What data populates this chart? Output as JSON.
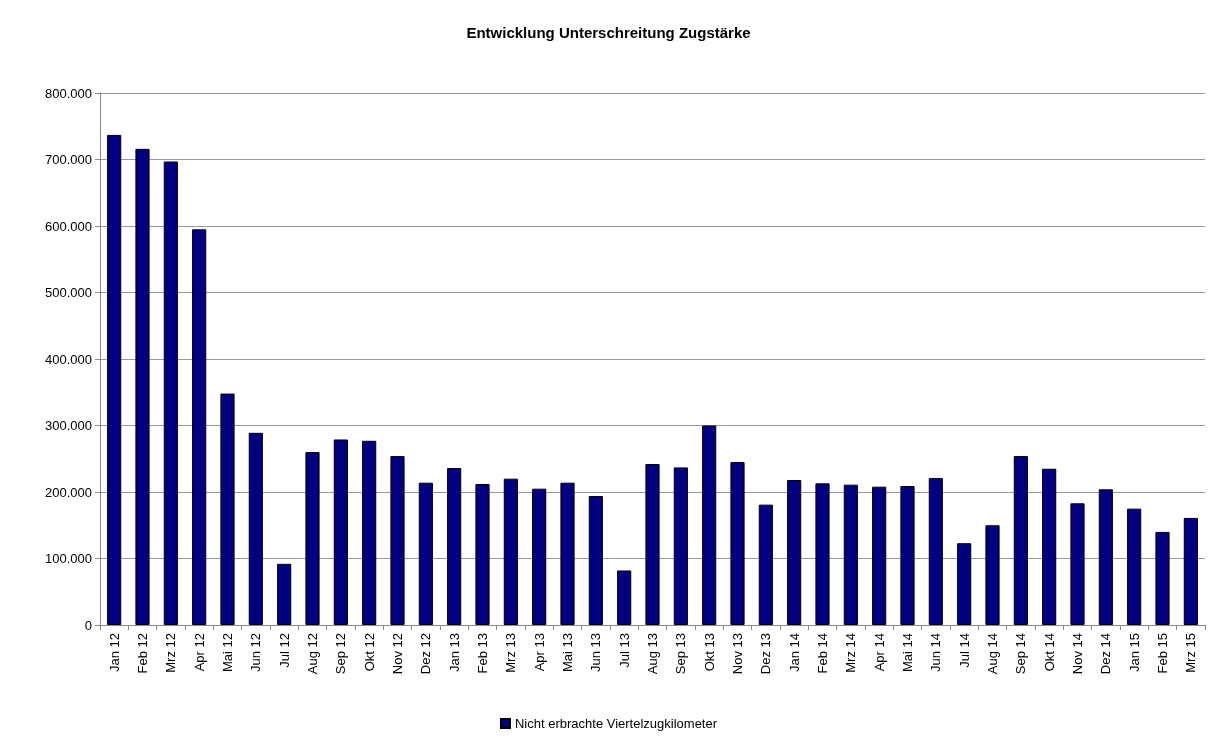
{
  "chart_data": {
    "type": "bar",
    "title": "Entwicklung Unterschreitung Zugstärke",
    "categories": [
      "Jan 12",
      "Feb 12",
      "Mrz 12",
      "Apr 12",
      "Mai 12",
      "Jun 12",
      "Jul 12",
      "Aug 12",
      "Sep 12",
      "Okt 12",
      "Nov 12",
      "Dez 12",
      "Jan 13",
      "Feb 13",
      "Mrz 13",
      "Apr 13",
      "Mai 13",
      "Jun 13",
      "Jul 13",
      "Aug 13",
      "Sep 13",
      "Okt 13",
      "Nov 13",
      "Dez 13",
      "Jan 14",
      "Feb 14",
      "Mrz 14",
      "Apr 14",
      "Mai 14",
      "Jun 14",
      "Jul 14",
      "Aug 14",
      "Sep 14",
      "Okt 14",
      "Nov 14",
      "Dez 14",
      "Jan 15",
      "Feb 15",
      "Mrz 15"
    ],
    "series": [
      {
        "name": "Nicht erbrachte Viertelzugkilometer",
        "color": "#000080",
        "values": [
          737000,
          716000,
          697000,
          595000,
          348000,
          289000,
          92000,
          260000,
          279000,
          277000,
          254000,
          214000,
          236000,
          212000,
          220000,
          205000,
          214000,
          194000,
          82000,
          242000,
          237000,
          300000,
          245000,
          181000,
          218000,
          213000,
          211000,
          208000,
          209000,
          221000,
          123000,
          150000,
          254000,
          235000,
          183000,
          204000,
          175000,
          140000,
          161000
        ]
      }
    ],
    "ylim": [
      0,
      800000
    ],
    "yticks": [
      0,
      {
        "value": 100000,
        "label": "100.000"
      },
      {
        "value": 200000,
        "label": "200.000"
      },
      {
        "value": 300000,
        "label": "300.000"
      },
      {
        "value": 400000,
        "label": "400.000"
      },
      {
        "value": 500000,
        "label": "500.000"
      },
      {
        "value": 600000,
        "label": "600.000"
      },
      {
        "value": 700000,
        "label": "700.000"
      },
      {
        "value": 800000,
        "label": "800.000"
      }
    ],
    "grid": "y",
    "legend": "bottom"
  }
}
